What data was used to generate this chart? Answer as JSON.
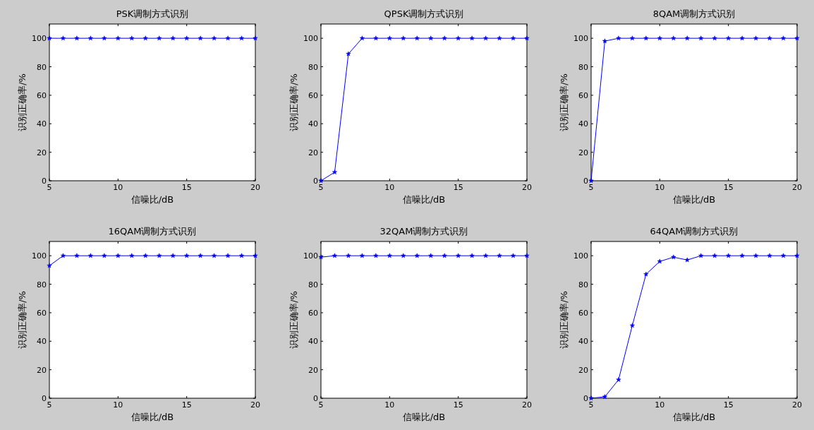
{
  "chart_data": [
    {
      "type": "line",
      "title": "PSK调制方式识别",
      "xlabel": "信噪比/dB",
      "ylabel": "识别正确率/%",
      "x": [
        5,
        6,
        7,
        8,
        9,
        10,
        11,
        12,
        13,
        14,
        15,
        16,
        17,
        18,
        19,
        20
      ],
      "series": [
        {
          "color": "#0000ff",
          "values": [
            100,
            100,
            100,
            100,
            100,
            100,
            100,
            100,
            100,
            100,
            100,
            100,
            100,
            100,
            100,
            100
          ]
        }
      ],
      "xlim": [
        5,
        20
      ],
      "xticks": [
        5,
        10,
        15,
        20
      ],
      "ylim": [
        0,
        110
      ],
      "yticks": [
        0,
        20,
        40,
        60,
        80,
        100
      ],
      "marker": "star",
      "line_style": "solid"
    },
    {
      "type": "line",
      "title": "QPSK调制方式识别",
      "xlabel": "信噪比/dB",
      "ylabel": "识别正确率/%",
      "x": [
        5,
        6,
        7,
        8,
        9,
        10,
        11,
        12,
        13,
        14,
        15,
        16,
        17,
        18,
        19,
        20
      ],
      "series": [
        {
          "color": "#0000ff",
          "values": [
            0,
            6,
            89,
            100,
            100,
            100,
            100,
            100,
            100,
            100,
            100,
            100,
            100,
            100,
            100,
            100
          ]
        }
      ],
      "xlim": [
        5,
        20
      ],
      "xticks": [
        5,
        10,
        15,
        20
      ],
      "ylim": [
        0,
        110
      ],
      "yticks": [
        0,
        20,
        40,
        60,
        80,
        100
      ],
      "marker": "star",
      "line_style": "solid"
    },
    {
      "type": "line",
      "title": "8QAM调制方式识别",
      "xlabel": "信噪比/dB",
      "ylabel": "识别正确率/%",
      "x": [
        5,
        6,
        7,
        8,
        9,
        10,
        11,
        12,
        13,
        14,
        15,
        16,
        17,
        18,
        19,
        20
      ],
      "series": [
        {
          "color": "#0000ff",
          "values": [
            0,
            98,
            100,
            100,
            100,
            100,
            100,
            100,
            100,
            100,
            100,
            100,
            100,
            100,
            100,
            100
          ]
        }
      ],
      "xlim": [
        5,
        20
      ],
      "xticks": [
        5,
        10,
        15,
        20
      ],
      "ylim": [
        0,
        110
      ],
      "yticks": [
        0,
        20,
        40,
        60,
        80,
        100
      ],
      "marker": "star",
      "line_style": "solid"
    },
    {
      "type": "line",
      "title": "16QAM调制方式识别",
      "xlabel": "信噪比/dB",
      "ylabel": "识别正确率/%",
      "x": [
        5,
        6,
        7,
        8,
        9,
        10,
        11,
        12,
        13,
        14,
        15,
        16,
        17,
        18,
        19,
        20
      ],
      "series": [
        {
          "color": "#0000ff",
          "values": [
            93,
            100,
            100,
            100,
            100,
            100,
            100,
            100,
            100,
            100,
            100,
            100,
            100,
            100,
            100,
            100
          ]
        }
      ],
      "xlim": [
        5,
        20
      ],
      "xticks": [
        5,
        10,
        15,
        20
      ],
      "ylim": [
        0,
        110
      ],
      "yticks": [
        0,
        20,
        40,
        60,
        80,
        100
      ],
      "marker": "star",
      "line_style": "solid"
    },
    {
      "type": "line",
      "title": "32QAM调制方式识别",
      "xlabel": "信噪比/dB",
      "ylabel": "识别正确率/%",
      "x": [
        5,
        6,
        7,
        8,
        9,
        10,
        11,
        12,
        13,
        14,
        15,
        16,
        17,
        18,
        19,
        20
      ],
      "series": [
        {
          "color": "#0000ff",
          "values": [
            99,
            100,
            100,
            100,
            100,
            100,
            100,
            100,
            100,
            100,
            100,
            100,
            100,
            100,
            100,
            100
          ]
        }
      ],
      "xlim": [
        5,
        20
      ],
      "xticks": [
        5,
        10,
        15,
        20
      ],
      "ylim": [
        0,
        110
      ],
      "yticks": [
        0,
        20,
        40,
        60,
        80,
        100
      ],
      "marker": "star",
      "line_style": "solid"
    },
    {
      "type": "line",
      "title": "64QAM调制方式识别",
      "xlabel": "信噪比/dB",
      "ylabel": "识别正确率/%",
      "x": [
        5,
        6,
        7,
        8,
        9,
        10,
        11,
        12,
        13,
        14,
        15,
        16,
        17,
        18,
        19,
        20
      ],
      "series": [
        {
          "color": "#0000ff",
          "values": [
            0,
            1,
            13,
            51,
            87,
            96,
            99,
            97,
            100,
            100,
            100,
            100,
            100,
            100,
            100,
            100
          ]
        }
      ],
      "xlim": [
        5,
        20
      ],
      "xticks": [
        5,
        10,
        15,
        20
      ],
      "ylim": [
        0,
        110
      ],
      "yticks": [
        0,
        20,
        40,
        60,
        80,
        100
      ],
      "marker": "star",
      "line_style": "solid"
    }
  ]
}
